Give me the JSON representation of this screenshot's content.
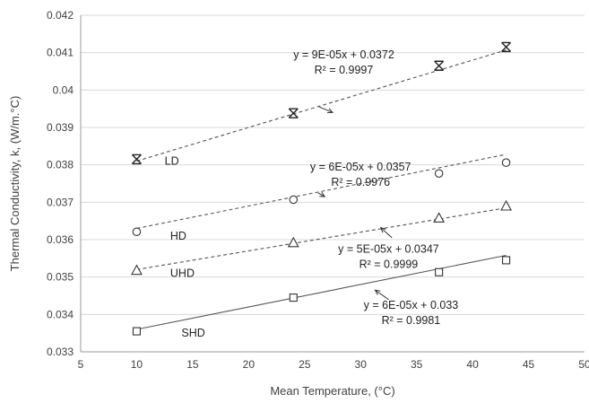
{
  "chart_data": {
    "type": "scatter",
    "title": "",
    "xlabel": "Mean Temperature,  (°C)",
    "ylabel": "Thermal Conductivity, k, (W/m.°C)",
    "xlim": [
      5,
      50
    ],
    "ylim": [
      0.033,
      0.042
    ],
    "xticks": [
      5,
      10,
      15,
      20,
      25,
      30,
      35,
      40,
      45,
      50
    ],
    "yticks": [
      0.033,
      0.034,
      0.035,
      0.036,
      0.037,
      0.038,
      0.039,
      0.04,
      0.041,
      0.042
    ],
    "xtick_labels": [
      "5",
      "10",
      "15",
      "20",
      "25",
      "30",
      "35",
      "40",
      "45",
      "50"
    ],
    "ytick_labels": [
      "0.033",
      "0.034",
      "0.035",
      "0.036",
      "0.037",
      "0.038",
      "0.039",
      "0.04",
      "0.041",
      "0.042"
    ],
    "grid": "horizontal",
    "series": [
      {
        "name": "LD",
        "marker": "asterisk",
        "line": "dashed",
        "x": [
          10,
          24,
          37,
          43
        ],
        "y": [
          0.03815,
          0.03938,
          0.04065,
          0.04115
        ],
        "fit_slope": 9e-05,
        "fit_intercept": 0.0372,
        "equation": "y = 9E-05x + 0.0372",
        "r2": "R² = 0.9997",
        "name_at": [
          12.5,
          0.0381
        ],
        "equation_at": [
          28.5,
          0.04085
        ],
        "arrow": [
          [
            26.3,
            0.03955
          ],
          [
            27.5,
            0.0394
          ]
        ]
      },
      {
        "name": "HD",
        "marker": "circle",
        "line": "dashed",
        "x": [
          10,
          24,
          37,
          43
        ],
        "y": [
          0.03621,
          0.03707,
          0.03777,
          0.03806
        ],
        "fit_slope": 6e-05,
        "fit_intercept": 0.0357,
        "equation": "y = 6E-05x + 0.0357",
        "r2": "R² = 0.9976",
        "name_at": [
          13.0,
          0.0361
        ],
        "equation_at": [
          30.0,
          0.03785
        ],
        "arrow": [
          [
            26.2,
            0.03725
          ],
          [
            26.8,
            0.03715
          ]
        ]
      },
      {
        "name": "UHD",
        "marker": "triangle",
        "line": "dashed",
        "x": [
          10,
          24,
          37,
          43
        ],
        "y": [
          0.03518,
          0.03592,
          0.03658,
          0.0369
        ],
        "fit_slope": 5e-05,
        "fit_intercept": 0.0347,
        "equation": "y = 5E-05x + 0.0347",
        "r2": "R² = 0.9999",
        "name_at": [
          13.0,
          0.0351
        ],
        "equation_at": [
          32.5,
          0.03565
        ],
        "arrow": [
          [
            32.8,
            0.03605
          ],
          [
            31.8,
            0.03632
          ]
        ]
      },
      {
        "name": "SHD",
        "marker": "square",
        "line": "solid",
        "x": [
          10,
          24,
          37,
          43
        ],
        "y": [
          0.03355,
          0.03445,
          0.03513,
          0.03545
        ],
        "fit_slope": 6e-05,
        "fit_intercept": 0.033,
        "equation": "y = 6E-05x + 0.033",
        "r2": "R² = 0.9981",
        "name_at": [
          14.0,
          0.0335
        ],
        "equation_at": [
          34.5,
          0.03415
        ],
        "arrow": [
          [
            32.5,
            0.0344
          ],
          [
            31.3,
            0.03465
          ]
        ]
      }
    ]
  }
}
